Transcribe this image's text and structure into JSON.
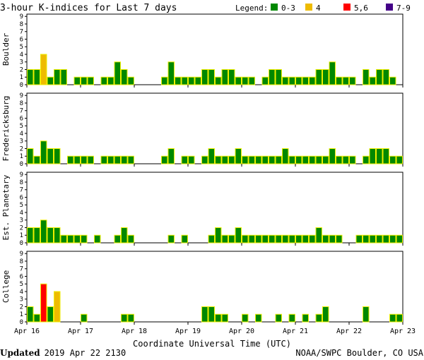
{
  "chart_data": {
    "type": "bar",
    "title": "3-hour K-indices for Last 7 days",
    "legend": {
      "title": "Legend:",
      "items": [
        {
          "label": "0-3",
          "color": "#008800"
        },
        {
          "label": "4",
          "color": "#eebb00"
        },
        {
          "label": "5,6",
          "color": "#ff0000"
        },
        {
          "label": "7-9",
          "color": "#440088"
        }
      ]
    },
    "bar_outline_color": "#eeee00",
    "xlabel": "Coordinate Universal Time (UTC)",
    "xticks": [
      "Apr 16",
      "Apr 17",
      "Apr 18",
      "Apr 19",
      "Apr 20",
      "Apr 21",
      "Apr 22",
      "Apr 23"
    ],
    "ylim": [
      0,
      9
    ],
    "yticks": [
      0,
      1,
      2,
      3,
      4,
      5,
      6,
      7,
      8,
      9
    ],
    "panels": [
      {
        "name": "Boulder",
        "values": [
          2,
          2,
          4,
          1,
          2,
          2,
          0,
          1,
          1,
          1,
          0,
          1,
          1,
          3,
          2,
          1,
          0,
          0,
          0,
          0,
          1,
          3,
          1,
          1,
          1,
          1,
          2,
          2,
          1,
          2,
          2,
          1,
          1,
          1,
          0,
          1,
          2,
          2,
          1,
          1,
          1,
          1,
          1,
          2,
          2,
          3,
          1,
          1,
          1,
          0,
          2,
          1,
          2,
          2,
          1,
          0
        ]
      },
      {
        "name": "Fredericksburg",
        "values": [
          2,
          1,
          3,
          2,
          2,
          0,
          1,
          1,
          1,
          1,
          0,
          1,
          1,
          1,
          1,
          1,
          0,
          0,
          0,
          0,
          1,
          2,
          0,
          1,
          1,
          0,
          1,
          2,
          1,
          1,
          1,
          2,
          1,
          1,
          1,
          1,
          1,
          1,
          2,
          1,
          1,
          1,
          1,
          1,
          1,
          2,
          1,
          1,
          1,
          0,
          1,
          2,
          2,
          2,
          1,
          1,
          0
        ]
      },
      {
        "name": "Est. Planetary",
        "values": [
          2,
          2,
          3,
          2,
          2,
          1,
          1,
          1,
          1,
          0,
          1,
          0,
          0,
          1,
          2,
          1,
          0,
          0,
          0,
          0,
          0,
          1,
          0,
          1,
          0,
          0,
          0,
          1,
          2,
          1,
          1,
          2,
          1,
          1,
          1,
          1,
          1,
          1,
          1,
          1,
          1,
          1,
          1,
          2,
          1,
          1,
          1,
          0,
          0,
          1,
          1,
          1,
          1,
          1,
          1,
          1
        ]
      },
      {
        "name": "College",
        "values": [
          2,
          1,
          5,
          2,
          4,
          0,
          0,
          0,
          1,
          0,
          0,
          0,
          0,
          0,
          1,
          1,
          0,
          0,
          0,
          0,
          0,
          0,
          0,
          0,
          0,
          0,
          2,
          2,
          1,
          1,
          0,
          0,
          1,
          0,
          1,
          0,
          0,
          1,
          0,
          1,
          0,
          1,
          0,
          1,
          2,
          0,
          0,
          0,
          0,
          0,
          2,
          0,
          0,
          0,
          1,
          1
        ]
      }
    ]
  },
  "footer": {
    "updated_label": "Updated",
    "updated_value": "2019 Apr 22 2130",
    "source": "NOAA/SWPC Boulder, CO USA"
  }
}
